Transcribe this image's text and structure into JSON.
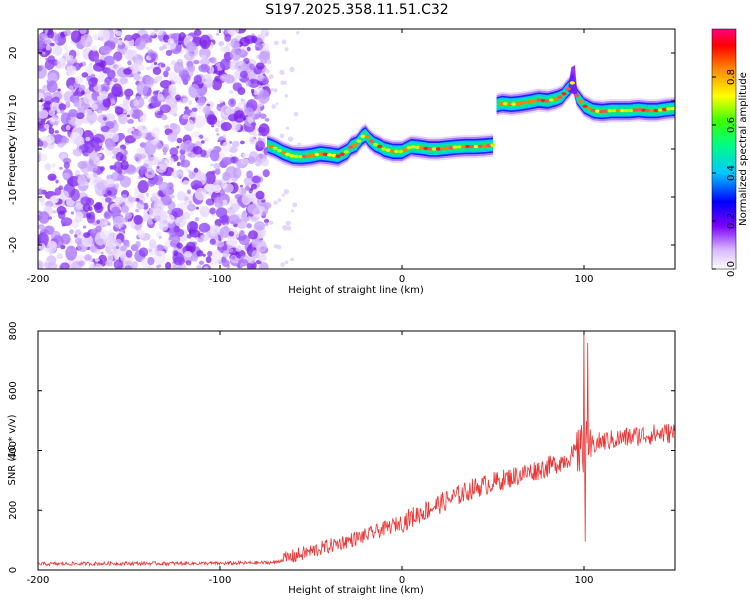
{
  "title": "S197.2025.358.11.51.C32",
  "chart_data": [
    {
      "type": "heatmap",
      "name": "spectrogram",
      "xlabel": "Height of straight line (km)",
      "ylabel": "Frequency (Hz)",
      "xlim": [
        -200,
        150
      ],
      "ylim": [
        -25,
        25
      ],
      "xticks": [
        -200,
        -100,
        0,
        100
      ],
      "yticks": [
        -20,
        -10,
        0,
        10,
        20
      ],
      "colorbar": {
        "label": "Normalized spectral amplitude",
        "range": [
          0,
          1
        ],
        "ticks": [
          0.0,
          0.2,
          0.4,
          0.6,
          0.8
        ]
      },
      "noise_region_x": [
        -200,
        -74
      ],
      "trace": {
        "x": [
          -74,
          -70,
          -65,
          -60,
          -55,
          -50,
          -45,
          -40,
          -35,
          -30,
          -28,
          -25,
          -22,
          -20,
          -18,
          -15,
          -12,
          -10,
          -5,
          0,
          5,
          10,
          15,
          20,
          25,
          30,
          35,
          40,
          45,
          50,
          52,
          55,
          60,
          65,
          70,
          75,
          80,
          85,
          88,
          90,
          92,
          94,
          96,
          98,
          100,
          105,
          110,
          115,
          120,
          125,
          130,
          135,
          140,
          145,
          150
        ],
        "y": [
          0.8,
          0.2,
          -0.8,
          -1.5,
          -1.6,
          -1.4,
          -1.0,
          -1.2,
          -1.5,
          -0.5,
          0.5,
          1.0,
          2.5,
          3.0,
          2.0,
          1.0,
          0.5,
          0.0,
          -0.5,
          -0.5,
          0.5,
          0.3,
          0.0,
          0.0,
          0.2,
          0.4,
          0.5,
          0.5,
          0.6,
          0.8,
          9.2,
          9.5,
          9.3,
          9.5,
          9.8,
          10.2,
          10.0,
          10.5,
          11.0,
          12.0,
          12.8,
          14.0,
          11.0,
          10.0,
          9.0,
          8.0,
          7.8,
          8.0,
          8.0,
          8.0,
          8.2,
          8.0,
          8.0,
          8.3,
          8.5
        ]
      }
    },
    {
      "type": "line",
      "name": "snr",
      "xlabel": "Height of straight line (km)",
      "ylabel": "SNR (10 * v/v)",
      "xlim": [
        -200,
        150
      ],
      "ylim": [
        0,
        800
      ],
      "xticks": [
        -200,
        -100,
        0,
        100
      ],
      "yticks": [
        0,
        200,
        400,
        600,
        800
      ],
      "color": "#ee3333",
      "trend": {
        "x": [
          -200,
          -150,
          -100,
          -70,
          -60,
          -40,
          -20,
          0,
          20,
          40,
          60,
          80,
          90,
          100,
          110,
          120,
          130,
          140,
          150
        ],
        "y": [
          20,
          22,
          22,
          25,
          45,
          80,
          115,
          160,
          220,
          275,
          310,
          345,
          370,
          410,
          430,
          440,
          450,
          455,
          460
        ]
      },
      "spikes": [
        {
          "x": 100,
          "y": 800
        },
        {
          "x": 100.5,
          "y": 95
        },
        {
          "x": 102,
          "y": 760
        },
        {
          "x": 98,
          "y": 470
        }
      ]
    }
  ]
}
